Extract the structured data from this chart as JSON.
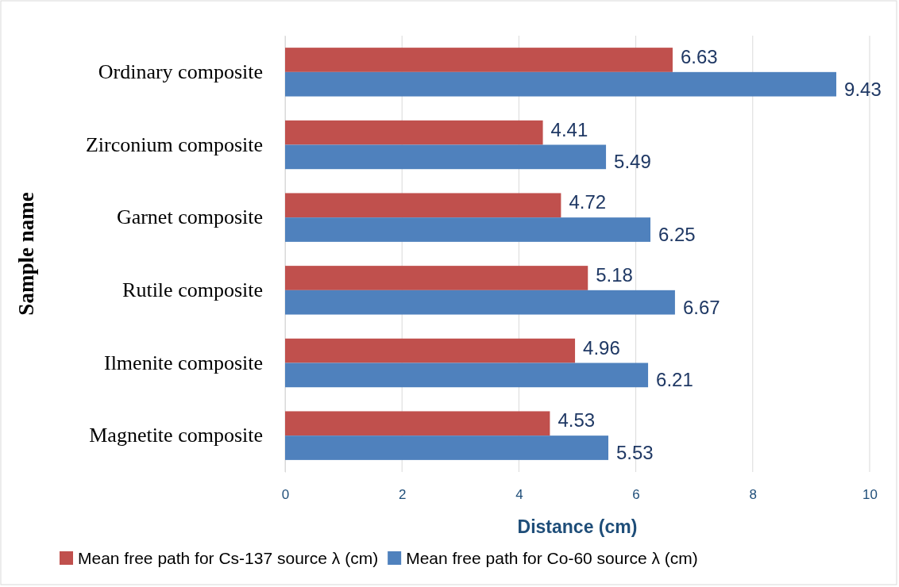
{
  "chart_data": {
    "type": "bar",
    "orientation": "horizontal",
    "xlabel": "Distance (cm)",
    "ylabel": "Sample name",
    "categories": [
      "Ordinary composite",
      "Zirconium composite",
      "Garnet composite",
      "Rutile composite",
      "Ilmenite composite",
      "Magnetite composite"
    ],
    "series": [
      {
        "name": "Mean free path for Cs-137 source λ (cm)",
        "color": "#c0504d",
        "values": [
          6.63,
          4.41,
          4.72,
          5.18,
          4.96,
          4.53
        ]
      },
      {
        "name": "Mean free path for Co-60 source λ (cm)",
        "color": "#4f81bd",
        "values": [
          9.43,
          5.49,
          6.25,
          6.67,
          6.21,
          5.53
        ]
      }
    ],
    "xlim": [
      0,
      10
    ],
    "xticks": [
      0,
      2,
      4,
      6,
      8,
      10
    ],
    "grid": "x",
    "legend": "bottom",
    "data_labels": true
  }
}
